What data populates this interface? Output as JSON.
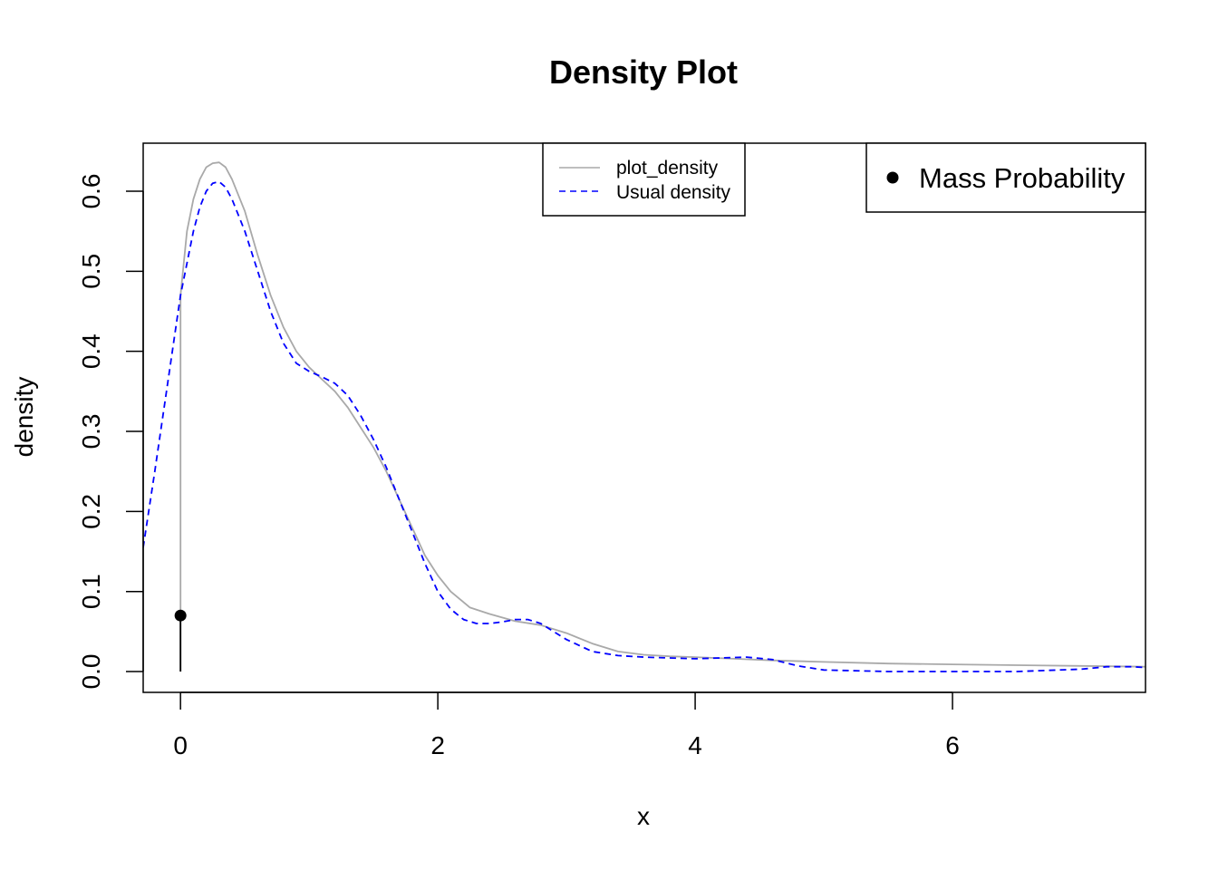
{
  "chart_data": {
    "type": "line",
    "title": "Density Plot",
    "xlabel": "x",
    "ylabel": "density",
    "xlim": [
      -0.29,
      7.5
    ],
    "ylim": [
      -0.026,
      0.66
    ],
    "x_ticks": [
      0,
      2,
      4,
      6
    ],
    "y_ticks": [
      0.0,
      0.1,
      0.2,
      0.3,
      0.4,
      0.5,
      0.6
    ],
    "x_tick_labels": [
      "0",
      "2",
      "4",
      "6"
    ],
    "y_tick_labels": [
      "0.0",
      "0.1",
      "0.2",
      "0.3",
      "0.4",
      "0.5",
      "0.6"
    ],
    "grid": false,
    "series": [
      {
        "name": "plot_density",
        "color": "#a9a9a9",
        "dash": "solid",
        "x": [
          0.0,
          0.0,
          0.05,
          0.1,
          0.15,
          0.2,
          0.25,
          0.3,
          0.35,
          0.4,
          0.5,
          0.6,
          0.7,
          0.8,
          0.9,
          1.0,
          1.1,
          1.2,
          1.3,
          1.4,
          1.5,
          1.6,
          1.7,
          1.8,
          1.9,
          2.0,
          2.1,
          2.25,
          2.4,
          2.6,
          2.8,
          3.0,
          3.2,
          3.4,
          3.6,
          3.8,
          4.0,
          4.3,
          4.6,
          5.0,
          5.5,
          6.0,
          6.5,
          7.0,
          7.5
        ],
        "y": [
          0.0,
          0.47,
          0.55,
          0.59,
          0.615,
          0.63,
          0.635,
          0.636,
          0.63,
          0.615,
          0.575,
          0.52,
          0.47,
          0.43,
          0.4,
          0.38,
          0.365,
          0.35,
          0.33,
          0.305,
          0.28,
          0.25,
          0.215,
          0.18,
          0.145,
          0.12,
          0.1,
          0.08,
          0.072,
          0.063,
          0.058,
          0.048,
          0.035,
          0.025,
          0.021,
          0.019,
          0.018,
          0.016,
          0.014,
          0.012,
          0.01,
          0.009,
          0.008,
          0.007,
          0.006
        ]
      },
      {
        "name": "Usual density",
        "color": "#0000ff",
        "dash": "dashed",
        "x": [
          -0.29,
          -0.2,
          -0.1,
          0.0,
          0.05,
          0.1,
          0.15,
          0.2,
          0.25,
          0.3,
          0.35,
          0.4,
          0.5,
          0.6,
          0.7,
          0.8,
          0.9,
          1.0,
          1.1,
          1.2,
          1.3,
          1.4,
          1.5,
          1.6,
          1.7,
          1.8,
          1.9,
          2.0,
          2.1,
          2.2,
          2.3,
          2.4,
          2.5,
          2.6,
          2.7,
          2.8,
          2.9,
          3.0,
          3.2,
          3.4,
          3.6,
          3.8,
          4.0,
          4.2,
          4.4,
          4.6,
          4.8,
          5.0,
          5.5,
          6.0,
          6.5,
          7.0,
          7.2,
          7.4,
          7.5
        ],
        "y": [
          0.155,
          0.25,
          0.36,
          0.47,
          0.51,
          0.55,
          0.58,
          0.6,
          0.61,
          0.612,
          0.605,
          0.59,
          0.55,
          0.5,
          0.45,
          0.41,
          0.385,
          0.375,
          0.368,
          0.36,
          0.345,
          0.32,
          0.29,
          0.255,
          0.215,
          0.175,
          0.135,
          0.1,
          0.078,
          0.065,
          0.06,
          0.06,
          0.062,
          0.065,
          0.065,
          0.06,
          0.05,
          0.04,
          0.025,
          0.02,
          0.018,
          0.017,
          0.016,
          0.017,
          0.018,
          0.015,
          0.007,
          0.002,
          0.0,
          0.0,
          0.0,
          0.003,
          0.006,
          0.006,
          0.005
        ]
      }
    ],
    "mass_probability": {
      "name": "Mass Probability",
      "color": "#000000",
      "x": 0,
      "y": 0.07
    },
    "legends": [
      {
        "position": "top-center",
        "entries": [
          {
            "label": "plot_density",
            "color": "#a9a9a9",
            "dash": "solid"
          },
          {
            "label": "Usual density",
            "color": "#0000ff",
            "dash": "dashed"
          }
        ]
      },
      {
        "position": "top-right",
        "entries": [
          {
            "label": "Mass Probability",
            "color": "#000000",
            "marker": "point"
          }
        ]
      }
    ]
  }
}
